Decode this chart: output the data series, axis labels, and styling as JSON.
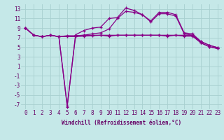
{
  "xlabel": "Windchill (Refroidissement éolien,°C)",
  "background_color": "#c5e8e8",
  "grid_color": "#a8d0d0",
  "line_color": "#880088",
  "x": [
    0,
    1,
    2,
    3,
    4,
    5,
    6,
    7,
    8,
    9,
    10,
    11,
    12,
    13,
    14,
    15,
    16,
    17,
    18,
    19,
    20,
    21,
    22,
    23
  ],
  "s1": [
    9.0,
    7.5,
    7.2,
    7.5,
    7.2,
    7.4,
    7.4,
    7.5,
    7.5,
    7.5,
    7.5,
    7.5,
    7.5,
    7.5,
    7.5,
    7.5,
    7.5,
    7.5,
    7.5,
    7.5,
    7.5,
    6.2,
    5.4,
    4.9
  ],
  "s2": [
    9.0,
    7.5,
    7.2,
    7.5,
    7.2,
    -7.5,
    7.6,
    8.5,
    9.0,
    9.2,
    11.0,
    11.2,
    13.2,
    12.7,
    11.8,
    10.5,
    12.3,
    12.3,
    11.8,
    8.0,
    7.8,
    6.2,
    5.4,
    4.9
  ],
  "s3": [
    9.0,
    7.5,
    7.2,
    7.5,
    7.2,
    7.2,
    7.2,
    7.3,
    7.4,
    7.5,
    7.3,
    7.5,
    7.5,
    7.5,
    7.5,
    7.5,
    7.5,
    7.3,
    7.5,
    7.3,
    7.3,
    5.9,
    5.1,
    4.7
  ],
  "s4": [
    9.0,
    7.5,
    7.2,
    7.5,
    7.2,
    -7.2,
    7.4,
    7.5,
    7.8,
    8.0,
    8.8,
    11.0,
    12.5,
    12.3,
    11.8,
    10.3,
    12.0,
    12.0,
    11.5,
    7.8,
    7.5,
    5.9,
    5.1,
    4.7
  ],
  "ylim": [
    -8,
    14
  ],
  "yticks": [
    -7,
    -5,
    -3,
    -1,
    1,
    3,
    5,
    7,
    9,
    11,
    13
  ],
  "xlim": [
    -0.5,
    23.5
  ],
  "tick_color": "#660066",
  "label_fontsize": 5.5,
  "tick_fontsize": 5.5
}
